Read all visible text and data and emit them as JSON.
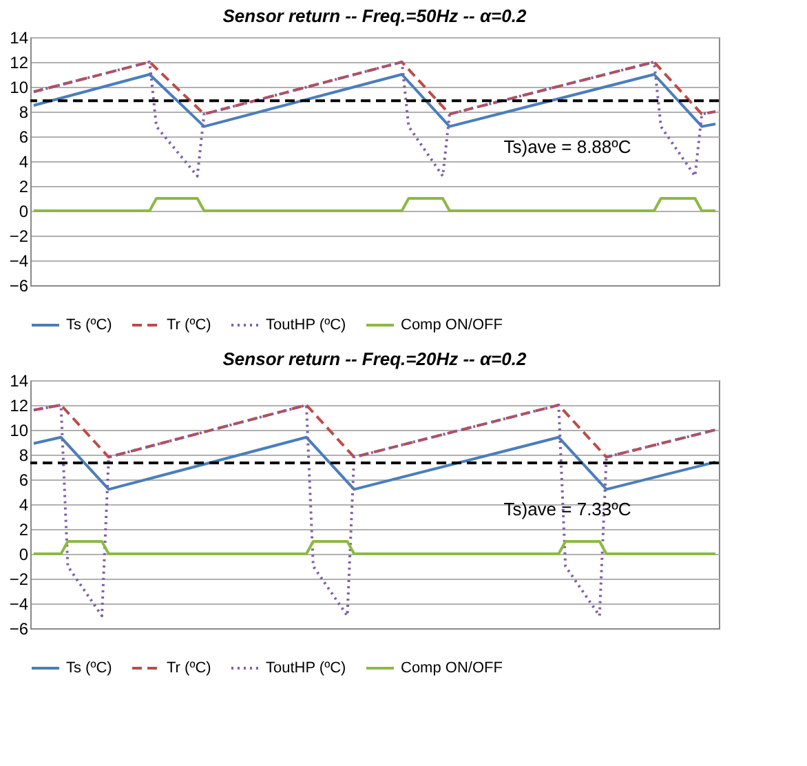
{
  "chart_data": [
    {
      "type": "line",
      "title": "Sensor return -- Freq.=50Hz -- α=0.2",
      "ylim": [
        -6,
        14
      ],
      "yticks": [
        -6,
        -4,
        -2,
        0,
        2,
        4,
        6,
        8,
        10,
        12,
        14
      ],
      "tick_labels": "y",
      "grid": "y",
      "legend": "bottom",
      "marker": "none",
      "categories": [
        null,
        null,
        null,
        null,
        null,
        null,
        null,
        null,
        null,
        null,
        null,
        null,
        null,
        null,
        null,
        null,
        null,
        null,
        null,
        null,
        null,
        null,
        null,
        null,
        null,
        null,
        null,
        null,
        null,
        null,
        null,
        null,
        null,
        null,
        null,
        null,
        null,
        null,
        null,
        null,
        null,
        null,
        null,
        null,
        null,
        null,
        null,
        null,
        null,
        null,
        null,
        null,
        null,
        null,
        null,
        null,
        null,
        null,
        null,
        null,
        null,
        null,
        null,
        null,
        null,
        null,
        null,
        null,
        null,
        null,
        null,
        null,
        null,
        null,
        null,
        null,
        null,
        null,
        null,
        null,
        null,
        null,
        null,
        null,
        null,
        null,
        null,
        null,
        null,
        null,
        null,
        null,
        null,
        null,
        null,
        null,
        null,
        null,
        null,
        null,
        null
      ],
      "ref_lines": [
        {
          "axis": "y",
          "value": 8.88,
          "label": "Ts)ave = 8.88ºC",
          "color": "#000000",
          "line_style": "dashed"
        }
      ],
      "series": [
        {
          "name": "Ts (ºC)",
          "color": "#4a7ebb",
          "line_style": "solid",
          "values": [
            8.5,
            null,
            null,
            null,
            null,
            null,
            null,
            null,
            null,
            null,
            null,
            null,
            null,
            null,
            null,
            null,
            null,
            11,
            null,
            null,
            null,
            null,
            null,
            null,
            null,
            6.8,
            null,
            null,
            null,
            null,
            null,
            null,
            null,
            null,
            null,
            null,
            null,
            null,
            null,
            null,
            null,
            null,
            null,
            null,
            null,
            null,
            null,
            null,
            null,
            null,
            null,
            null,
            null,
            null,
            11,
            null,
            null,
            null,
            null,
            null,
            null,
            6.8,
            null,
            null,
            null,
            null,
            null,
            null,
            null,
            null,
            null,
            null,
            null,
            null,
            null,
            null,
            null,
            null,
            null,
            null,
            null,
            null,
            null,
            null,
            null,
            null,
            null,
            null,
            null,
            null,
            null,
            11,
            null,
            null,
            null,
            null,
            null,
            null,
            6.8,
            null,
            7.0
          ]
        },
        {
          "name": "Tr (ºC)",
          "color": "#be4b48",
          "line_style": "dashed",
          "values": [
            9.6,
            null,
            null,
            null,
            null,
            null,
            null,
            null,
            null,
            null,
            null,
            null,
            null,
            null,
            null,
            null,
            null,
            12,
            null,
            null,
            null,
            null,
            null,
            null,
            null,
            7.8,
            null,
            null,
            null,
            null,
            null,
            null,
            null,
            null,
            null,
            null,
            null,
            null,
            null,
            null,
            null,
            null,
            null,
            null,
            null,
            null,
            null,
            null,
            null,
            null,
            null,
            null,
            null,
            null,
            12,
            null,
            null,
            null,
            null,
            null,
            null,
            7.8,
            null,
            null,
            null,
            null,
            null,
            null,
            null,
            null,
            null,
            null,
            null,
            null,
            null,
            null,
            null,
            null,
            null,
            null,
            null,
            null,
            null,
            null,
            null,
            null,
            null,
            null,
            null,
            null,
            null,
            12,
            null,
            null,
            null,
            null,
            null,
            null,
            7.8,
            null,
            8.0
          ]
        },
        {
          "name": "ToutHP (ºC)",
          "color": "#7f5fa8",
          "line_style": "dotted",
          "values": [
            9.6,
            null,
            null,
            null,
            null,
            null,
            null,
            null,
            null,
            null,
            null,
            null,
            null,
            null,
            null,
            null,
            null,
            12,
            6.8,
            null,
            null,
            null,
            null,
            null,
            2.8,
            7.8,
            null,
            null,
            null,
            null,
            null,
            null,
            null,
            null,
            null,
            null,
            null,
            null,
            null,
            null,
            null,
            null,
            null,
            null,
            null,
            null,
            null,
            null,
            null,
            null,
            null,
            null,
            null,
            null,
            12,
            6.8,
            null,
            null,
            null,
            null,
            2.8,
            7.8,
            null,
            null,
            null,
            null,
            null,
            null,
            null,
            null,
            null,
            null,
            null,
            null,
            null,
            null,
            null,
            null,
            null,
            null,
            null,
            null,
            null,
            null,
            null,
            null,
            null,
            null,
            null,
            null,
            null,
            12,
            6.8,
            null,
            null,
            null,
            null,
            2.8,
            7.8,
            null,
            8.0
          ]
        },
        {
          "name": "Comp ON/OFF",
          "color": "#8cb944",
          "line_style": "solid",
          "values": [
            0,
            null,
            null,
            null,
            null,
            null,
            null,
            null,
            null,
            null,
            null,
            null,
            null,
            null,
            null,
            null,
            null,
            0,
            1,
            null,
            null,
            null,
            null,
            null,
            1,
            0,
            null,
            null,
            null,
            null,
            null,
            null,
            null,
            null,
            null,
            null,
            null,
            null,
            null,
            null,
            null,
            null,
            null,
            null,
            null,
            null,
            null,
            null,
            null,
            null,
            null,
            null,
            null,
            null,
            0,
            1,
            null,
            null,
            null,
            null,
            1,
            0,
            null,
            null,
            null,
            null,
            null,
            null,
            null,
            null,
            null,
            null,
            null,
            null,
            null,
            null,
            null,
            null,
            null,
            null,
            null,
            null,
            null,
            null,
            null,
            null,
            null,
            null,
            null,
            null,
            null,
            0,
            1,
            null,
            null,
            null,
            null,
            1,
            0,
            null,
            0
          ]
        }
      ]
    },
    {
      "type": "line",
      "title": "Sensor return -- Freq.=20Hz -- α=0.2",
      "ylim": [
        -6,
        14
      ],
      "yticks": [
        -6,
        -4,
        -2,
        0,
        2,
        4,
        6,
        8,
        10,
        12,
        14
      ],
      "tick_labels": "y",
      "grid": "y",
      "legend": "bottom",
      "marker": "none",
      "categories": [
        null,
        null,
        null,
        null,
        null,
        null,
        null,
        null,
        null,
        null,
        null,
        null,
        null,
        null,
        null,
        null,
        null,
        null,
        null,
        null,
        null,
        null,
        null,
        null,
        null,
        null,
        null,
        null,
        null,
        null,
        null,
        null,
        null,
        null,
        null,
        null,
        null,
        null,
        null,
        null,
        null,
        null,
        null,
        null,
        null,
        null,
        null,
        null,
        null,
        null,
        null,
        null,
        null,
        null,
        null,
        null,
        null,
        null,
        null,
        null,
        null,
        null,
        null,
        null,
        null,
        null,
        null,
        null,
        null,
        null,
        null,
        null,
        null,
        null,
        null,
        null,
        null,
        null,
        null,
        null,
        null,
        null,
        null,
        null,
        null,
        null,
        null,
        null,
        null,
        null,
        null,
        null,
        null,
        null,
        null,
        null,
        null,
        null,
        null,
        null,
        null
      ],
      "ref_lines": [
        {
          "axis": "y",
          "value": 7.33,
          "label": "Ts)ave = 7.33ºC",
          "color": "#000000",
          "line_style": "dashed"
        }
      ],
      "series": [
        {
          "name": "Ts (ºC)",
          "color": "#4a7ebb",
          "line_style": "solid",
          "values": [
            8.9,
            null,
            null,
            null,
            9.4,
            null,
            null,
            null,
            null,
            null,
            null,
            5.2,
            null,
            null,
            null,
            null,
            null,
            null,
            null,
            null,
            null,
            null,
            null,
            null,
            null,
            null,
            null,
            null,
            null,
            null,
            null,
            null,
            null,
            null,
            null,
            null,
            null,
            null,
            null,
            null,
            9.4,
            null,
            null,
            null,
            null,
            null,
            null,
            5.2,
            null,
            null,
            null,
            null,
            null,
            null,
            null,
            null,
            null,
            null,
            null,
            null,
            null,
            null,
            null,
            null,
            null,
            null,
            null,
            null,
            null,
            null,
            null,
            null,
            null,
            null,
            null,
            null,
            null,
            9.4,
            null,
            null,
            null,
            null,
            null,
            null,
            5.2,
            null,
            null,
            null,
            null,
            null,
            null,
            null,
            null,
            null,
            null,
            null,
            null,
            null,
            null,
            null,
            7.4
          ]
        },
        {
          "name": "Tr (ºC)",
          "color": "#be4b48",
          "line_style": "dashed",
          "values": [
            11.6,
            null,
            null,
            null,
            12,
            null,
            null,
            null,
            null,
            null,
            null,
            7.8,
            null,
            null,
            null,
            null,
            null,
            null,
            null,
            null,
            null,
            null,
            null,
            null,
            null,
            null,
            null,
            null,
            null,
            null,
            null,
            null,
            null,
            null,
            null,
            null,
            null,
            null,
            null,
            null,
            12,
            null,
            null,
            null,
            null,
            null,
            null,
            7.8,
            null,
            null,
            null,
            null,
            null,
            null,
            null,
            null,
            null,
            null,
            null,
            null,
            null,
            null,
            null,
            null,
            null,
            null,
            null,
            null,
            null,
            null,
            null,
            null,
            null,
            null,
            null,
            null,
            null,
            12,
            null,
            null,
            null,
            null,
            null,
            null,
            7.8,
            null,
            null,
            null,
            null,
            null,
            null,
            null,
            null,
            null,
            null,
            null,
            null,
            null,
            null,
            null,
            10
          ]
        },
        {
          "name": "ToutHP (ºC)",
          "color": "#7f5fa8",
          "line_style": "dotted",
          "values": [
            11.6,
            null,
            null,
            null,
            12,
            -1,
            null,
            null,
            null,
            null,
            -5,
            7.8,
            null,
            null,
            null,
            null,
            null,
            null,
            null,
            null,
            null,
            null,
            null,
            null,
            null,
            null,
            null,
            null,
            null,
            null,
            null,
            null,
            null,
            null,
            null,
            null,
            null,
            null,
            null,
            null,
            12,
            -1,
            null,
            null,
            null,
            null,
            -5,
            7.8,
            null,
            null,
            null,
            null,
            null,
            null,
            null,
            null,
            null,
            null,
            null,
            null,
            null,
            null,
            null,
            null,
            null,
            null,
            null,
            null,
            null,
            null,
            null,
            null,
            null,
            null,
            null,
            null,
            null,
            12,
            -1,
            null,
            null,
            null,
            null,
            -5,
            7.8,
            null,
            null,
            null,
            null,
            null,
            null,
            null,
            null,
            null,
            null,
            null,
            null,
            null,
            null,
            null,
            10
          ]
        },
        {
          "name": "Comp ON/OFF",
          "color": "#8cb944",
          "line_style": "solid",
          "values": [
            0,
            null,
            null,
            null,
            0,
            1,
            null,
            null,
            null,
            null,
            1,
            0,
            null,
            null,
            null,
            null,
            null,
            null,
            null,
            null,
            null,
            null,
            null,
            null,
            null,
            null,
            null,
            null,
            null,
            null,
            null,
            null,
            null,
            null,
            null,
            null,
            null,
            null,
            null,
            null,
            0,
            1,
            null,
            null,
            null,
            null,
            1,
            0,
            null,
            null,
            null,
            null,
            null,
            null,
            null,
            null,
            null,
            null,
            null,
            null,
            null,
            null,
            null,
            null,
            null,
            null,
            null,
            null,
            null,
            null,
            null,
            null,
            null,
            null,
            null,
            null,
            null,
            0,
            1,
            null,
            null,
            null,
            null,
            1,
            0,
            null,
            null,
            null,
            null,
            null,
            null,
            null,
            null,
            null,
            null,
            null,
            null,
            null,
            null,
            null,
            0
          ]
        }
      ]
    }
  ]
}
